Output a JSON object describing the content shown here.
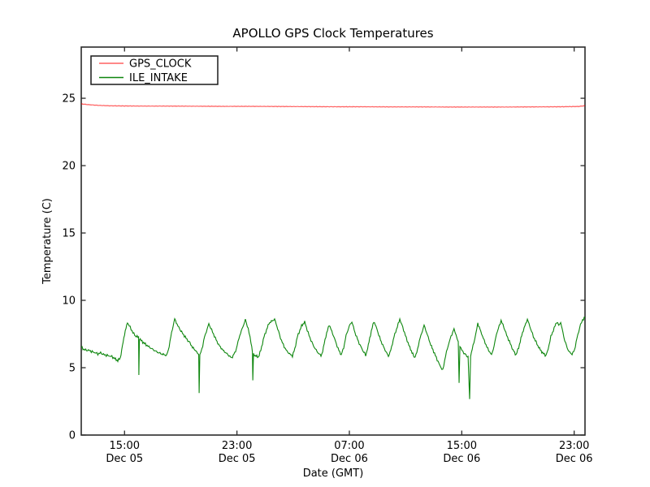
{
  "title": "APOLLO GPS Clock Temperatures",
  "chart_data": {
    "type": "line",
    "title": "APOLLO GPS Clock Temperatures",
    "xlabel": "Date (GMT)",
    "ylabel": "Temperature (C)",
    "x_unit": "hours since Dec 05 00:00 GMT",
    "xlim": [
      11.92,
      47.77
    ],
    "ylim": [
      0,
      28.8
    ],
    "grid": false,
    "legend_position": "upper left",
    "yticks": [
      0,
      5,
      10,
      15,
      20,
      25
    ],
    "xticks": [
      {
        "value": 15,
        "time": "15:00",
        "date": "Dec 05"
      },
      {
        "value": 23,
        "time": "23:00",
        "date": "Dec 05"
      },
      {
        "value": 31,
        "time": "07:00",
        "date": "Dec 06"
      },
      {
        "value": 39,
        "time": "15:00",
        "date": "Dec 06"
      },
      {
        "value": 47,
        "time": "23:00",
        "date": "Dec 06"
      }
    ],
    "series": [
      {
        "name": "GPS_CLOCK",
        "color": "#ff0000",
        "noise_amp": 0.022,
        "points": [
          [
            11.92,
            24.58
          ],
          [
            12.5,
            24.52
          ],
          [
            13.2,
            24.47
          ],
          [
            14.0,
            24.44
          ],
          [
            15.0,
            24.43
          ],
          [
            16.5,
            24.42
          ],
          [
            18.0,
            24.42
          ],
          [
            20.0,
            24.41
          ],
          [
            22.0,
            24.4
          ],
          [
            24.0,
            24.4
          ],
          [
            26.0,
            24.39
          ],
          [
            28.0,
            24.38
          ],
          [
            30.0,
            24.37
          ],
          [
            32.0,
            24.37
          ],
          [
            34.0,
            24.36
          ],
          [
            36.0,
            24.36
          ],
          [
            38.0,
            24.35
          ],
          [
            40.0,
            24.35
          ],
          [
            42.0,
            24.35
          ],
          [
            44.0,
            24.36
          ],
          [
            46.0,
            24.37
          ],
          [
            47.3,
            24.39
          ],
          [
            47.77,
            24.45
          ]
        ]
      },
      {
        "name": "ILE_INTAKE",
        "color": "#007f00",
        "noise_amp": 0.1,
        "points": [
          [
            11.92,
            6.55
          ],
          [
            12.1,
            6.35
          ],
          [
            12.3,
            6.3
          ],
          [
            12.5,
            6.28
          ],
          [
            12.7,
            6.18
          ],
          [
            12.9,
            6.12
          ],
          [
            13.1,
            6.02
          ],
          [
            13.3,
            6.1
          ],
          [
            13.5,
            5.98
          ],
          [
            13.7,
            5.92
          ],
          [
            13.9,
            5.88
          ],
          [
            14.1,
            5.82
          ],
          [
            14.3,
            5.68
          ],
          [
            14.52,
            5.52
          ],
          [
            14.7,
            5.72
          ],
          [
            14.85,
            6.6
          ],
          [
            15.0,
            7.5
          ],
          [
            15.21,
            8.35
          ],
          [
            15.4,
            8.0
          ],
          [
            15.6,
            7.6
          ],
          [
            15.79,
            7.35
          ],
          [
            16.0,
            7.25
          ],
          [
            16.02,
            4.45
          ],
          [
            16.06,
            7.15
          ],
          [
            16.3,
            6.9
          ],
          [
            16.54,
            6.7
          ],
          [
            16.8,
            6.5
          ],
          [
            17.1,
            6.3
          ],
          [
            17.4,
            6.12
          ],
          [
            17.7,
            6.0
          ],
          [
            17.99,
            5.92
          ],
          [
            18.12,
            6.3
          ],
          [
            18.35,
            7.6
          ],
          [
            18.57,
            8.62
          ],
          [
            18.8,
            8.1
          ],
          [
            19.0,
            7.75
          ],
          [
            19.2,
            7.45
          ],
          [
            19.44,
            7.1
          ],
          [
            19.65,
            6.85
          ],
          [
            19.84,
            6.5
          ],
          [
            20.05,
            6.28
          ],
          [
            20.19,
            6.08
          ],
          [
            20.28,
            5.98
          ],
          [
            20.31,
            3.2
          ],
          [
            20.36,
            5.95
          ],
          [
            20.5,
            6.35
          ],
          [
            20.7,
            7.3
          ],
          [
            21.0,
            8.25
          ],
          [
            21.2,
            7.8
          ],
          [
            21.46,
            7.2
          ],
          [
            21.7,
            6.7
          ],
          [
            22.0,
            6.3
          ],
          [
            22.3,
            6.02
          ],
          [
            22.62,
            5.72
          ],
          [
            22.9,
            6.2
          ],
          [
            23.2,
            7.4
          ],
          [
            23.6,
            8.55
          ],
          [
            23.8,
            7.9
          ],
          [
            24.0,
            6.9
          ],
          [
            24.1,
            6.2
          ],
          [
            24.13,
            4.05
          ],
          [
            24.18,
            6.0
          ],
          [
            24.3,
            5.9
          ],
          [
            24.52,
            5.78
          ],
          [
            24.7,
            6.3
          ],
          [
            24.93,
            7.3
          ],
          [
            25.28,
            8.3
          ],
          [
            25.68,
            8.6
          ],
          [
            25.9,
            7.9
          ],
          [
            26.1,
            7.2
          ],
          [
            26.3,
            6.7
          ],
          [
            26.5,
            6.3
          ],
          [
            26.75,
            6.02
          ],
          [
            26.95,
            5.88
          ],
          [
            27.12,
            6.4
          ],
          [
            27.3,
            7.3
          ],
          [
            27.6,
            8.1
          ],
          [
            27.82,
            8.4
          ],
          [
            28.0,
            7.8
          ],
          [
            28.2,
            7.2
          ],
          [
            28.46,
            6.6
          ],
          [
            28.7,
            6.2
          ],
          [
            28.98,
            5.88
          ],
          [
            29.1,
            6.2
          ],
          [
            29.27,
            7.1
          ],
          [
            29.56,
            8.2
          ],
          [
            29.75,
            7.7
          ],
          [
            30.0,
            7.0
          ],
          [
            30.2,
            6.4
          ],
          [
            30.42,
            5.95
          ],
          [
            30.6,
            6.5
          ],
          [
            30.77,
            7.4
          ],
          [
            31.0,
            8.1
          ],
          [
            31.18,
            8.42
          ],
          [
            31.4,
            7.6
          ],
          [
            31.7,
            6.8
          ],
          [
            31.95,
            6.3
          ],
          [
            32.16,
            5.92
          ],
          [
            32.3,
            6.4
          ],
          [
            32.45,
            7.2
          ],
          [
            32.74,
            8.45
          ],
          [
            32.95,
            7.9
          ],
          [
            33.1,
            7.4
          ],
          [
            33.32,
            6.8
          ],
          [
            33.55,
            6.3
          ],
          [
            33.78,
            5.85
          ],
          [
            33.95,
            6.3
          ],
          [
            34.18,
            7.3
          ],
          [
            34.59,
            8.6
          ],
          [
            34.8,
            8.0
          ],
          [
            35.05,
            7.2
          ],
          [
            35.3,
            6.5
          ],
          [
            35.63,
            5.75
          ],
          [
            35.8,
            6.1
          ],
          [
            35.98,
            7.0
          ],
          [
            36.32,
            8.15
          ],
          [
            36.5,
            7.6
          ],
          [
            36.79,
            6.7
          ],
          [
            37.0,
            6.2
          ],
          [
            37.25,
            5.6
          ],
          [
            37.45,
            5.15
          ],
          [
            37.65,
            4.8
          ],
          [
            37.85,
            5.9
          ],
          [
            38.1,
            6.9
          ],
          [
            38.3,
            7.5
          ],
          [
            38.45,
            7.88
          ],
          [
            38.6,
            7.4
          ],
          [
            38.75,
            6.9
          ],
          [
            38.81,
            3.9
          ],
          [
            38.87,
            6.6
          ],
          [
            39.0,
            6.3
          ],
          [
            39.15,
            6.1
          ],
          [
            39.3,
            5.92
          ],
          [
            39.45,
            5.8
          ],
          [
            39.56,
            2.6
          ],
          [
            39.63,
            5.9
          ],
          [
            39.8,
            6.6
          ],
          [
            40.0,
            7.5
          ],
          [
            40.14,
            8.3
          ],
          [
            40.35,
            7.7
          ],
          [
            40.6,
            7.0
          ],
          [
            40.85,
            6.4
          ],
          [
            41.12,
            5.95
          ],
          [
            41.3,
            6.6
          ],
          [
            41.47,
            7.5
          ],
          [
            41.8,
            8.5
          ],
          [
            42.0,
            8.0
          ],
          [
            42.2,
            7.4
          ],
          [
            42.45,
            6.8
          ],
          [
            42.65,
            6.3
          ],
          [
            42.86,
            5.95
          ],
          [
            43.05,
            6.5
          ],
          [
            43.32,
            7.6
          ],
          [
            43.67,
            8.6
          ],
          [
            43.9,
            7.9
          ],
          [
            44.1,
            7.3
          ],
          [
            44.48,
            6.5
          ],
          [
            44.75,
            6.1
          ],
          [
            45.0,
            5.9
          ],
          [
            45.15,
            6.4
          ],
          [
            45.34,
            7.3
          ],
          [
            45.75,
            8.4
          ],
          [
            45.9,
            8.15
          ],
          [
            46.04,
            8.35
          ],
          [
            46.2,
            7.6
          ],
          [
            46.33,
            7.0
          ],
          [
            46.5,
            6.5
          ],
          [
            46.62,
            6.2
          ],
          [
            46.85,
            6.0
          ],
          [
            47.02,
            6.3
          ],
          [
            47.2,
            7.2
          ],
          [
            47.45,
            8.2
          ],
          [
            47.6,
            8.55
          ],
          [
            47.77,
            8.7
          ]
        ]
      }
    ]
  }
}
